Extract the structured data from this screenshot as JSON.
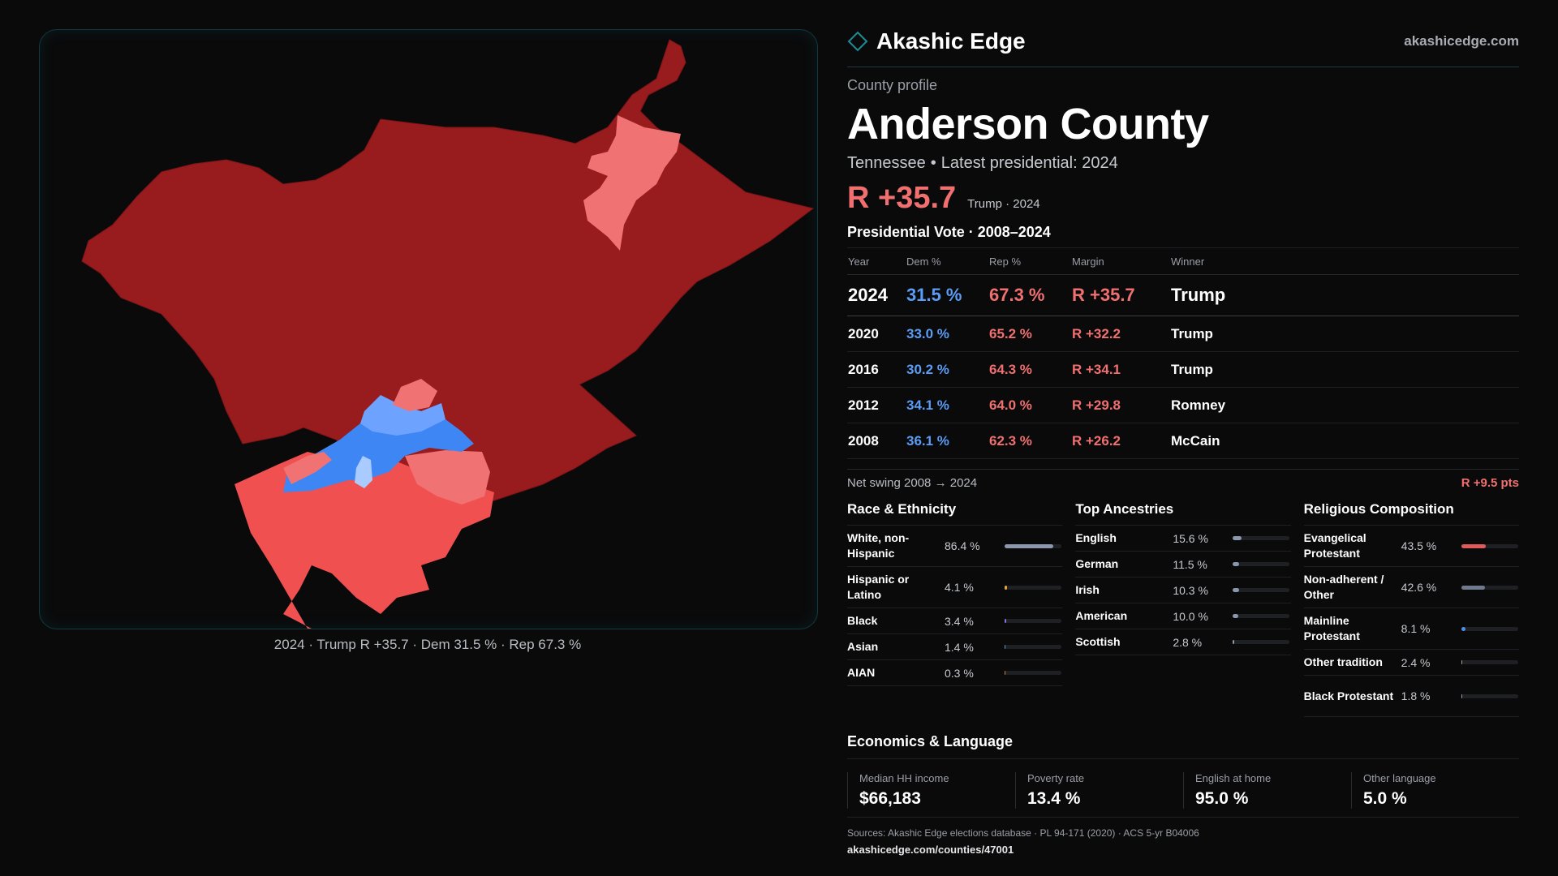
{
  "brand": {
    "name": "Akashic Edge",
    "site": "akashicedge.com"
  },
  "profile": {
    "kicker": "County profile",
    "county": "Anderson County",
    "state": "Tennessee",
    "latest": "Latest presidential: 2024",
    "headline_margin": "R +35.7",
    "headline_sub": "Trump · 2024"
  },
  "map": {
    "caption": "2024 · Trump R +35.7 · Dem 31.5 % · Rep 67.3 %",
    "colors": {
      "safe_r": "#981b1e",
      "lean_r": "#f07272",
      "likely_r": "#f05050",
      "lean_d": "#6ea2ff",
      "likely_d": "#3f86f5",
      "tossup_d": "#a9cbff"
    }
  },
  "votes": {
    "title": "Presidential Vote · 2008–2024",
    "headers": [
      "Year",
      "Dem %",
      "Rep %",
      "Margin",
      "Winner"
    ],
    "rows": [
      {
        "year": "2024",
        "dem": "31.5 %",
        "rep": "67.3 %",
        "margin": "R +35.7",
        "winner": "Trump"
      },
      {
        "year": "2020",
        "dem": "33.0 %",
        "rep": "65.2 %",
        "margin": "R +32.2",
        "winner": "Trump"
      },
      {
        "year": "2016",
        "dem": "30.2 %",
        "rep": "64.3 %",
        "margin": "R +34.1",
        "winner": "Trump"
      },
      {
        "year": "2012",
        "dem": "34.1 %",
        "rep": "64.0 %",
        "margin": "R +29.8",
        "winner": "Romney"
      },
      {
        "year": "2008",
        "dem": "36.1 %",
        "rep": "62.3 %",
        "margin": "R +26.2",
        "winner": "McCain"
      }
    ],
    "swing_label": "Net swing 2008 → 2024",
    "swing_value": "R +9.5 pts"
  },
  "race": {
    "title": "Race & Ethnicity",
    "items": [
      {
        "label": "White, non-Hispanic",
        "value": "86.4 %",
        "pct": 86.4,
        "color": "#8a97ad"
      },
      {
        "label": "Hispanic or Latino",
        "value": "4.1 %",
        "pct": 4.1,
        "color": "#e5a33a"
      },
      {
        "label": "Black",
        "value": "3.4 %",
        "pct": 3.4,
        "color": "#8a6fe0"
      },
      {
        "label": "Asian",
        "value": "1.4 %",
        "pct": 1.4,
        "color": "#5aa0b8"
      },
      {
        "label": "AIAN",
        "value": "0.3 %",
        "pct": 0.3,
        "color": "#c9803e"
      }
    ]
  },
  "ancestry": {
    "title": "Top Ancestries",
    "items": [
      {
        "label": "English",
        "value": "15.6 %",
        "pct": 15.6,
        "color": "#8a97ad"
      },
      {
        "label": "German",
        "value": "11.5 %",
        "pct": 11.5,
        "color": "#8a97ad"
      },
      {
        "label": "Irish",
        "value": "10.3 %",
        "pct": 10.3,
        "color": "#8a97ad"
      },
      {
        "label": "American",
        "value": "10.0 %",
        "pct": 10.0,
        "color": "#8a97ad"
      },
      {
        "label": "Scottish",
        "value": "2.8 %",
        "pct": 2.8,
        "color": "#8a97ad"
      }
    ]
  },
  "religion": {
    "title": "Religious Composition",
    "items": [
      {
        "label": "Evangelical Protestant",
        "value": "43.5 %",
        "pct": 43.5,
        "color": "#e05a5a"
      },
      {
        "label": "Non-adherent / Other",
        "value": "42.6 %",
        "pct": 42.6,
        "color": "#6f7a8c"
      },
      {
        "label": "Mainline Protestant",
        "value": "8.1 %",
        "pct": 8.1,
        "color": "#4a8ff0"
      },
      {
        "label": "Other tradition",
        "value": "2.4 %",
        "pct": 2.4,
        "color": "#9aa0a8"
      },
      {
        "label": "Black Protestant",
        "value": "1.8 %",
        "pct": 1.8,
        "color": "#9aa0a8"
      }
    ]
  },
  "economics": {
    "title": "Economics & Language",
    "cells": [
      {
        "label": "Median HH income",
        "value": "$66,183"
      },
      {
        "label": "Poverty rate",
        "value": "13.4 %"
      },
      {
        "label": "English at home",
        "value": "95.0 %"
      },
      {
        "label": "Other language",
        "value": "5.0 %"
      }
    ]
  },
  "footer": {
    "sources": "Sources: Akashic Edge elections database · PL 94-171 (2020) · ACS 5-yr B04006",
    "url": "akashicedge.com/counties/47001"
  }
}
